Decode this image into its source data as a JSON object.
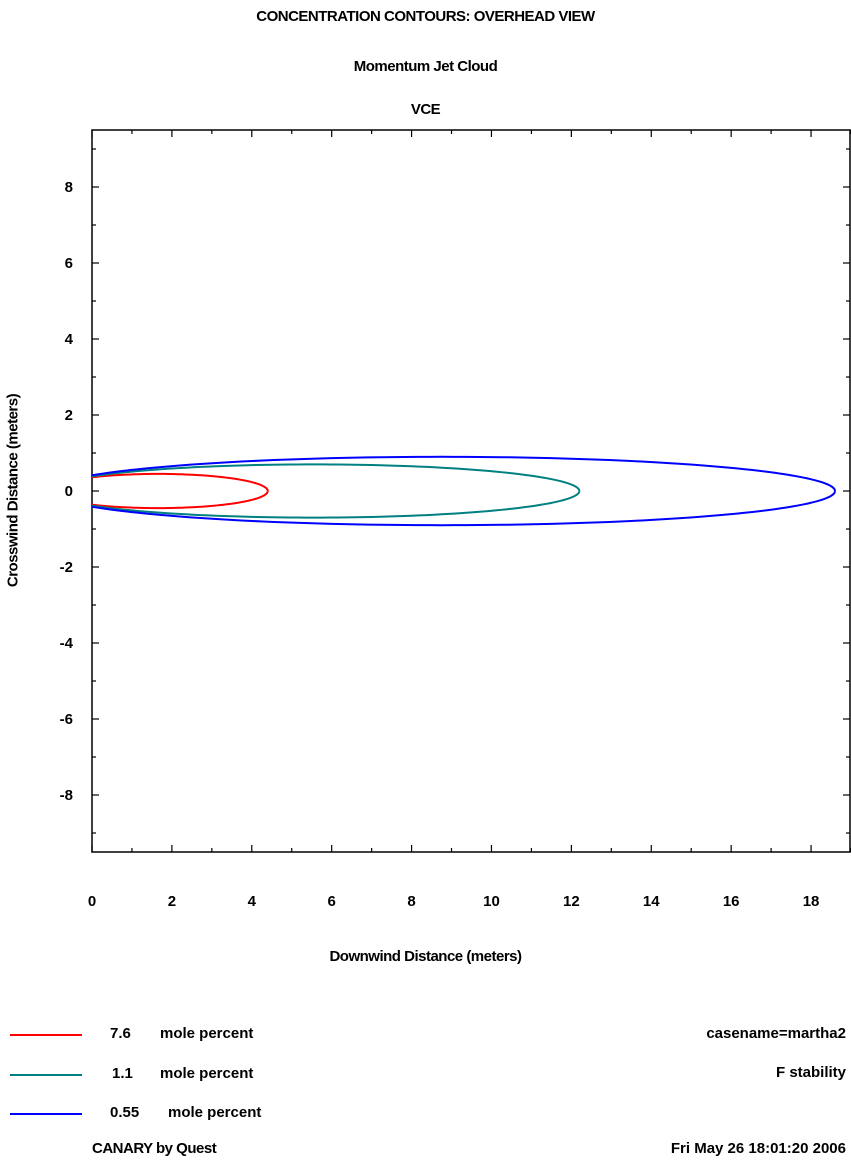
{
  "titles": {
    "line1": "CONCENTRATION CONTOURS: OVERHEAD VIEW",
    "line2": "Momentum Jet Cloud",
    "line3": "VCE"
  },
  "chart_data": {
    "type": "line",
    "title": "CONCENTRATION CONTOURS: OVERHEAD VIEW",
    "subtitle": "Momentum Jet Cloud",
    "xlabel": "Downwind Distance (meters)",
    "ylabel": "Crosswind Distance (meters)",
    "xlim": [
      0,
      19
    ],
    "ylim": [
      -9.5,
      9.5
    ],
    "xticks": [
      0,
      2,
      4,
      6,
      8,
      10,
      12,
      14,
      16,
      18
    ],
    "yticks": [
      8,
      6,
      4,
      2,
      0,
      -2,
      -4,
      -6,
      -8
    ],
    "grid": false,
    "legend_position": "bottom-left",
    "series": [
      {
        "name": "7.6 mole percent",
        "color": "#ff0000",
        "x_start": -1.1,
        "x_end": 4.4,
        "max_halfwidth": 0.45
      },
      {
        "name": "1.1 mole percent",
        "color": "#008080",
        "x_start": -1.1,
        "x_end": 12.2,
        "max_halfwidth": 0.7
      },
      {
        "name": "0.55 mole percent",
        "color": "#0000ff",
        "x_start": -1.1,
        "x_end": 18.6,
        "max_halfwidth": 0.9
      }
    ]
  },
  "legend": [
    {
      "value": "7.6",
      "unit": "mole percent",
      "color": "#ff0000"
    },
    {
      "value": "1.1",
      "unit": "mole percent",
      "color": "#008080"
    },
    {
      "value": "0.55",
      "unit": "mole percent",
      "color": "#0000ff"
    }
  ],
  "info": {
    "casename": "casename=martha2",
    "stability": "F stability",
    "software": "CANARY by Quest",
    "timestamp": "Fri May 26 18:01:20 2006"
  }
}
